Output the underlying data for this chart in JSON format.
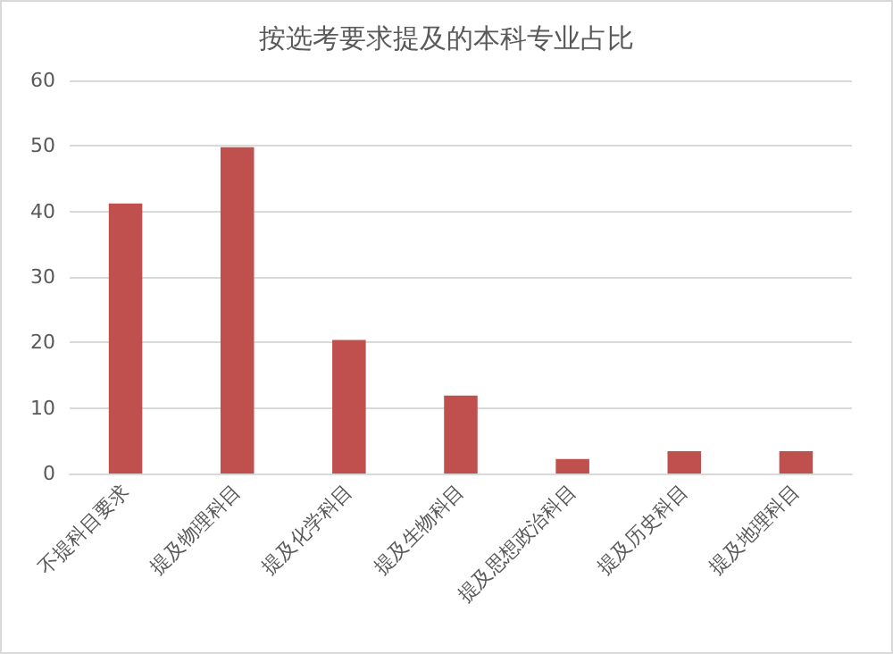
{
  "chart_data": {
    "type": "bar",
    "title": "按选考要求提及的本科专业占比",
    "categories": [
      "不提科目要求",
      "提及物理科目",
      "提及化学科目",
      "提及生物科目",
      "提及思想政治科目",
      "提及历史科目",
      "提及地理科目"
    ],
    "values": [
      41.2,
      49.8,
      20.4,
      11.9,
      2.2,
      3.4,
      3.4
    ],
    "color": "#c0504d",
    "ylim": [
      0,
      60
    ],
    "yticks": [
      0,
      10,
      20,
      30,
      40,
      50,
      60
    ],
    "grid": "y"
  }
}
